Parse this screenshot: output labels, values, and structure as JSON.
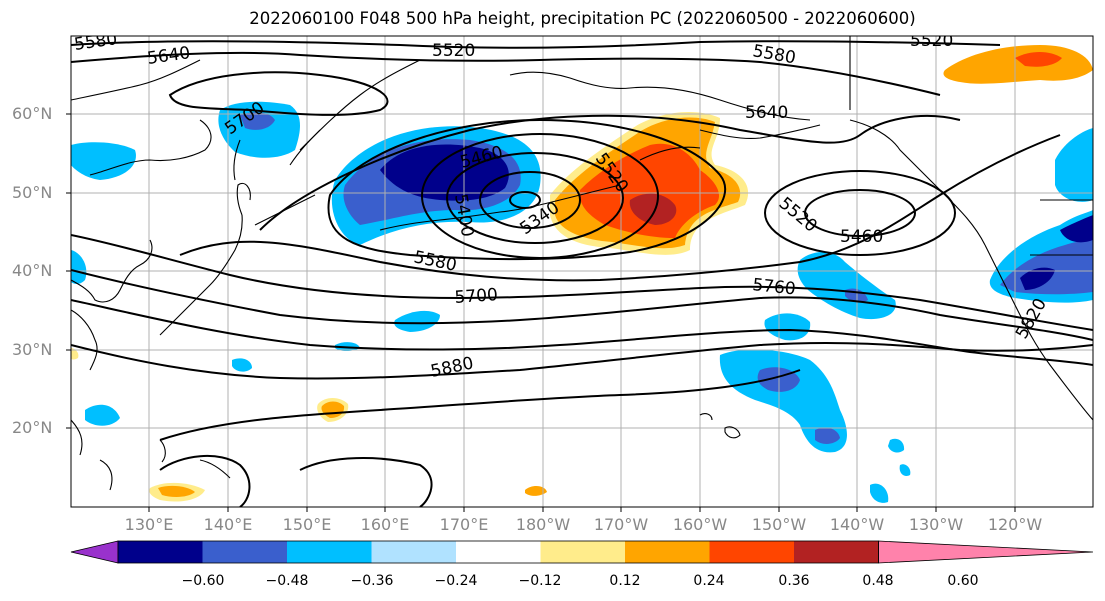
{
  "title": "2022060100 F048 500 hPa height, precipitation PC (2022060500 - 2022060600)",
  "lat_labels": [
    "60°N",
    "50°N",
    "40°N",
    "30°N",
    "20°N"
  ],
  "lon_labels": [
    "130°E",
    "140°E",
    "150°E",
    "160°E",
    "170°E",
    "180°W",
    "170°W",
    "160°W",
    "150°W",
    "140°W",
    "130°W",
    "120°W"
  ],
  "contour_labels": [
    "5580",
    "5640",
    "5520",
    "5580",
    "5520",
    "5700",
    "5640",
    "5460",
    "5520",
    "5400",
    "5340",
    "5520",
    "5460",
    "5580",
    "5700",
    "5760",
    "5880",
    "5820"
  ],
  "colorbar": {
    "ticks": [
      "−0.60",
      "−0.48",
      "−0.36",
      "−0.24",
      "−0.12",
      "0.12",
      "0.24",
      "0.36",
      "0.48",
      "0.60"
    ],
    "colors": [
      "#9932cc",
      "#00008b",
      "#3a5fcd",
      "#00bfff",
      "#b0e2ff",
      "#ffffff",
      "#ffec8b",
      "#ffa500",
      "#ff4500",
      "#b22222",
      "#ff82ab"
    ]
  }
}
